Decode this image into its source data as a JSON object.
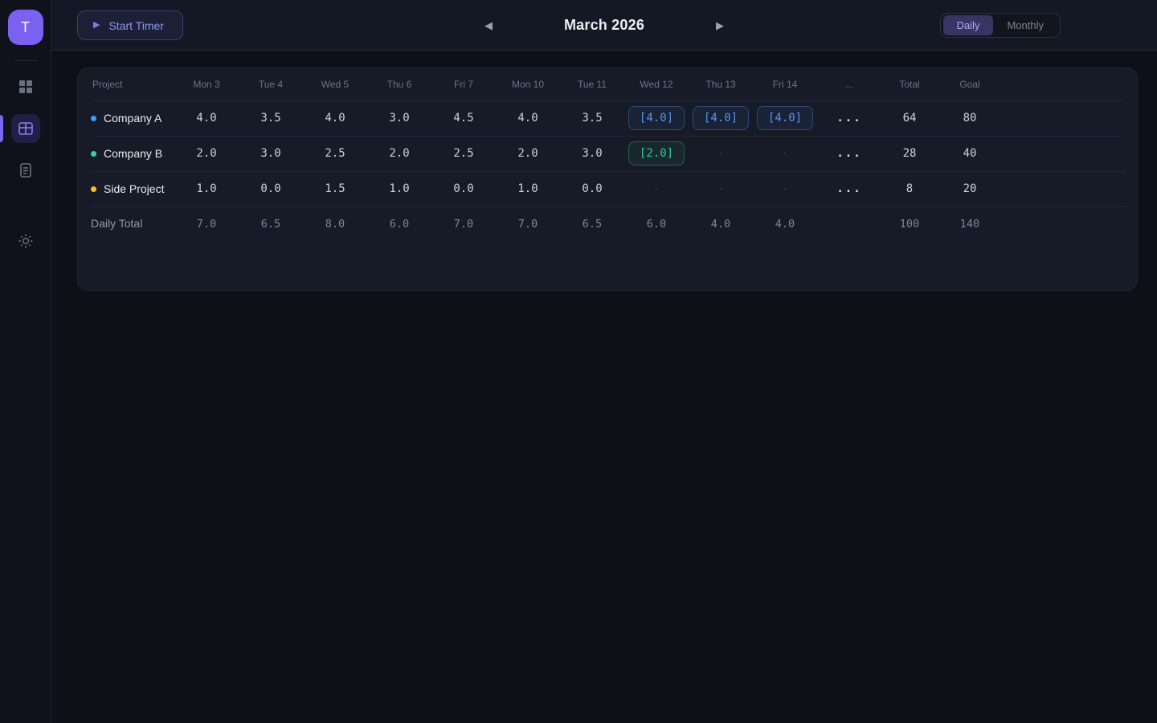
{
  "sidebar": {
    "avatar_initial": "T",
    "items": [
      {
        "name": "dashboard",
        "icon": "grid-icon",
        "active": false
      },
      {
        "name": "timesheet",
        "icon": "table-icon",
        "active": true
      },
      {
        "name": "reports",
        "icon": "document-icon",
        "active": false
      },
      {
        "name": "theme",
        "icon": "sun-icon",
        "active": false
      }
    ]
  },
  "topbar": {
    "start_timer_label": "Start Timer",
    "play_icon": "▶",
    "prev_icon": "◀",
    "next_icon": "▶",
    "month_title": "March 2026",
    "toggle": {
      "daily_label": "Daily",
      "monthly_label": "Monthly",
      "selected": "Daily"
    }
  },
  "table": {
    "columns": [
      "Project",
      "Mon 3",
      "Tue 4",
      "Wed 5",
      "Thu 6",
      "Fri 7",
      "Mon 10",
      "Tue 11",
      "Wed 12",
      "Thu 13",
      "Fri 14",
      "...",
      "Total",
      "Goal"
    ],
    "rows": [
      {
        "project": "Company A",
        "dot_color": "#3b9ef8",
        "cells": [
          {
            "v": "4.0",
            "kind": "plain"
          },
          {
            "v": "3.5",
            "kind": "plain"
          },
          {
            "v": "4.0",
            "kind": "plain"
          },
          {
            "v": "3.0",
            "kind": "plain"
          },
          {
            "v": "4.5",
            "kind": "plain"
          },
          {
            "v": "4.0",
            "kind": "plain"
          },
          {
            "v": "3.5",
            "kind": "plain"
          },
          {
            "v": "[4.0]",
            "kind": "boxed_blue"
          },
          {
            "v": "[4.0]",
            "kind": "boxed_blue"
          },
          {
            "v": "[4.0]",
            "kind": "boxed_blue"
          },
          {
            "v": "...",
            "kind": "ellipsis"
          }
        ],
        "total": "64",
        "goal": "80"
      },
      {
        "project": "Company B",
        "dot_color": "#34d399",
        "cells": [
          {
            "v": "2.0",
            "kind": "plain"
          },
          {
            "v": "3.0",
            "kind": "plain"
          },
          {
            "v": "2.5",
            "kind": "plain"
          },
          {
            "v": "2.0",
            "kind": "plain"
          },
          {
            "v": "2.5",
            "kind": "plain"
          },
          {
            "v": "2.0",
            "kind": "plain"
          },
          {
            "v": "3.0",
            "kind": "plain"
          },
          {
            "v": "[2.0]",
            "kind": "boxed_green"
          },
          {
            "v": "·",
            "kind": "dot"
          },
          {
            "v": "·",
            "kind": "dot"
          },
          {
            "v": "...",
            "kind": "ellipsis"
          }
        ],
        "total": "28",
        "goal": "40"
      },
      {
        "project": "Side Project",
        "dot_color": "#fbbf24",
        "cells": [
          {
            "v": "1.0",
            "kind": "plain"
          },
          {
            "v": "0.0",
            "kind": "plain"
          },
          {
            "v": "1.5",
            "kind": "plain"
          },
          {
            "v": "1.0",
            "kind": "plain"
          },
          {
            "v": "0.0",
            "kind": "plain"
          },
          {
            "v": "1.0",
            "kind": "plain"
          },
          {
            "v": "0.0",
            "kind": "plain"
          },
          {
            "v": "·",
            "kind": "dot"
          },
          {
            "v": "·",
            "kind": "dot"
          },
          {
            "v": "·",
            "kind": "dot"
          },
          {
            "v": "...",
            "kind": "ellipsis"
          }
        ],
        "total": "8",
        "goal": "20"
      }
    ],
    "footer": {
      "label": "Daily Total",
      "cells": [
        {
          "v": "7.0",
          "kind": "plain"
        },
        {
          "v": "6.5",
          "kind": "plain"
        },
        {
          "v": "8.0",
          "kind": "plain"
        },
        {
          "v": "6.0",
          "kind": "plain"
        },
        {
          "v": "7.0",
          "kind": "plain"
        },
        {
          "v": "7.0",
          "kind": "plain"
        },
        {
          "v": "6.5",
          "kind": "plain"
        },
        {
          "v": "6.0",
          "kind": "plain"
        },
        {
          "v": "4.0",
          "kind": "plain"
        },
        {
          "v": "4.0",
          "kind": "plain"
        },
        {
          "v": "",
          "kind": "empty"
        }
      ],
      "total": "100",
      "goal": "140"
    }
  },
  "colors": {
    "accent_purple": "#7c66f0",
    "project_blue": "#3b9ef8",
    "project_green": "#34d399",
    "project_amber": "#fbbf24",
    "boxed_blue_text": "#5795ee",
    "boxed_green_text": "#31c894",
    "card_bg": "#171b27",
    "topbar_bg": "#141824"
  }
}
